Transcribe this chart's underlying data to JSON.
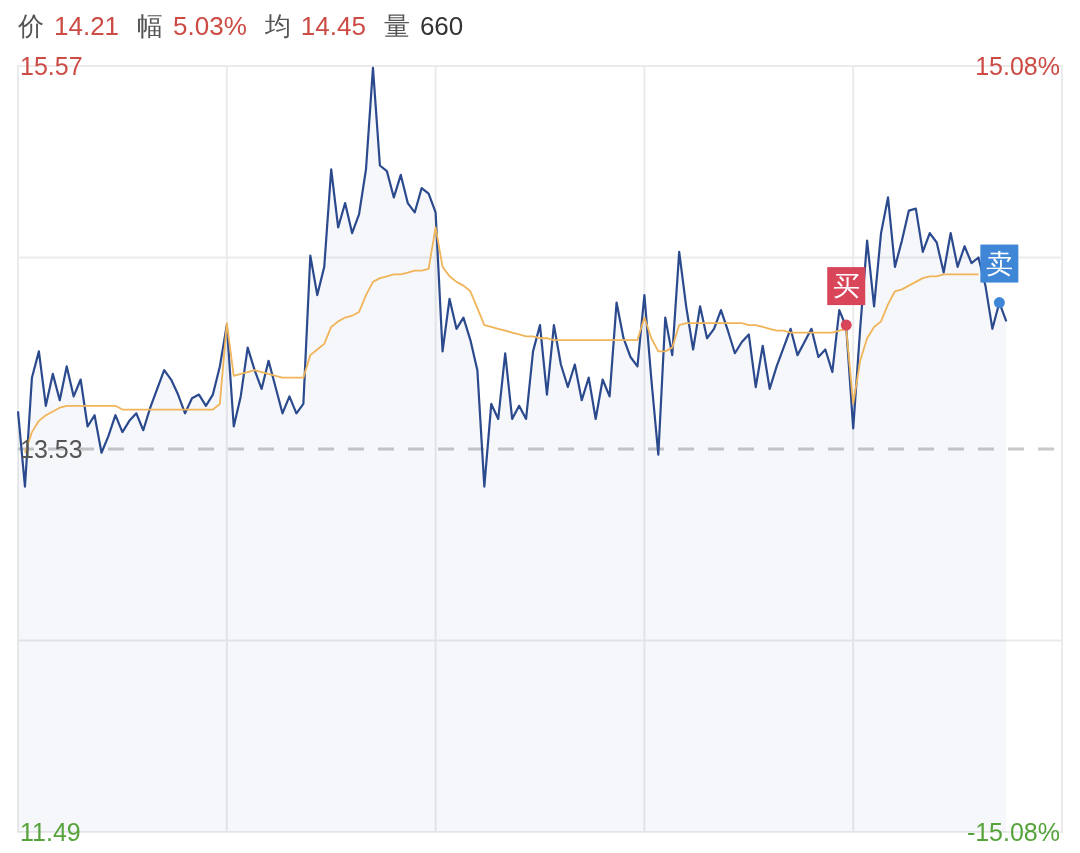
{
  "chart_data": {
    "type": "line",
    "annotations": [
      "价 14.21",
      "幅 5.03%",
      "均 14.45",
      "量 660",
      {
        "text": "买",
        "y": 14.19
      },
      {
        "text": "卖",
        "y": 14.31
      }
    ],
    "categories": [
      null,
      null,
      null,
      null,
      null,
      null,
      null,
      null,
      null,
      null,
      null,
      null,
      null,
      null,
      null,
      null,
      null,
      null,
      null,
      null,
      null,
      null,
      null,
      null,
      null,
      null,
      null,
      null,
      null,
      null,
      null,
      null,
      null,
      null,
      null,
      null,
      null,
      null,
      null,
      null,
      null,
      null,
      null,
      null,
      null,
      null,
      null,
      null,
      null,
      null,
      null,
      null,
      null,
      null,
      null,
      null,
      null,
      null,
      null,
      null,
      null,
      null,
      null,
      null,
      null,
      null,
      null,
      null,
      null,
      null,
      null,
      null,
      null,
      null,
      null,
      null,
      null,
      null,
      null,
      null,
      null,
      null,
      null,
      null,
      null,
      null,
      null,
      null,
      null,
      null,
      null,
      null,
      null,
      null,
      null,
      null,
      null,
      null,
      null,
      null,
      null,
      null,
      null,
      null,
      null,
      null,
      null,
      null,
      null,
      null,
      null,
      null,
      null,
      null,
      null,
      null,
      null,
      null,
      null,
      null,
      null,
      null,
      null,
      null,
      null,
      null,
      null,
      null,
      null,
      null,
      null,
      null,
      null,
      null,
      null,
      null,
      null,
      null,
      null,
      null,
      null,
      null,
      null
    ],
    "ylim": [
      11.49,
      15.57
    ],
    "yticks": [
      11.49,
      {
        "value": 12.51,
        "label": null
      },
      {
        "value": 14.55,
        "label": null
      },
      15.57
    ],
    "y2lim": [
      -15.08,
      15.08
    ],
    "y2ticks": [
      {
        "value": -15.08,
        "label": "-15.08%"
      },
      {
        "value": 15.08,
        "label": "15.08%"
      }
    ],
    "grid": true,
    "ref_lines": [
      {
        "axis": "y",
        "value": 13.53,
        "label": "13.53",
        "color": "#c8c8c8",
        "line_style": "dashed"
      }
    ],
    "series": [
      {
        "type": "area",
        "color": "#2b4a8e",
        "values": [
          13.73,
          13.33,
          13.91,
          14.05,
          13.76,
          13.93,
          13.79,
          13.97,
          13.81,
          13.9,
          13.65,
          13.71,
          13.51,
          13.6,
          13.71,
          13.62,
          13.68,
          13.72,
          13.63,
          13.75,
          13.85,
          13.95,
          13.9,
          13.82,
          13.72,
          13.8,
          13.82,
          13.76,
          13.82,
          13.97,
          14.19,
          13.65,
          13.81,
          14.07,
          13.95,
          13.85,
          14.0,
          13.86,
          13.72,
          13.81,
          13.72,
          13.77,
          14.56,
          14.35,
          14.5,
          15.02,
          14.71,
          14.84,
          14.68,
          14.78,
          15.02,
          15.56,
          15.04,
          15.01,
          14.87,
          14.99,
          14.84,
          14.79,
          14.92,
          14.89,
          14.79,
          14.05,
          14.33,
          14.17,
          14.23,
          14.11,
          13.95,
          13.33,
          13.77,
          13.69,
          14.04,
          13.69,
          13.76,
          13.69,
          14.05,
          14.19,
          13.82,
          14.19,
          13.98,
          13.86,
          13.98,
          13.79,
          13.91,
          13.69,
          13.9,
          13.81,
          14.31,
          14.12,
          14.02,
          13.97,
          14.35,
          13.9,
          13.5,
          14.23,
          14.03,
          14.58,
          14.29,
          14.06,
          14.29,
          14.12,
          14.17,
          14.27,
          14.16,
          14.04,
          14.1,
          14.14,
          13.86,
          14.08,
          13.85,
          13.97,
          14.07,
          14.17,
          14.03,
          14.1,
          14.17,
          14.02,
          14.06,
          13.94,
          14.27,
          14.18,
          13.64,
          14.17,
          14.64,
          14.29,
          14.68,
          14.87,
          14.5,
          14.64,
          14.8,
          14.81,
          14.58,
          14.68,
          14.63,
          14.47,
          14.68,
          14.5,
          14.61,
          14.52,
          14.55,
          14.4,
          14.17,
          14.31,
          14.21
        ]
      },
      {
        "color": "#f0b45a",
        "values": [
          null,
          13.51,
          13.62,
          13.68,
          13.71,
          13.73,
          13.75,
          13.76,
          13.76,
          13.76,
          13.76,
          13.76,
          13.76,
          13.76,
          13.76,
          13.74,
          13.74,
          13.74,
          13.74,
          13.74,
          13.74,
          13.74,
          13.74,
          13.74,
          13.74,
          13.74,
          13.74,
          13.74,
          13.74,
          13.77,
          14.2,
          13.92,
          13.93,
          13.94,
          13.95,
          13.94,
          13.93,
          13.92,
          13.91,
          13.91,
          13.91,
          13.91,
          14.03,
          14.06,
          14.09,
          14.18,
          14.21,
          14.23,
          14.24,
          14.26,
          14.35,
          14.42,
          14.44,
          14.45,
          14.46,
          14.46,
          14.47,
          14.48,
          14.48,
          14.49,
          14.71,
          14.5,
          14.45,
          14.42,
          14.4,
          14.37,
          14.28,
          14.19,
          14.18,
          14.17,
          14.16,
          14.15,
          14.14,
          14.13,
          14.13,
          14.12,
          14.12,
          14.11,
          14.11,
          14.11,
          14.11,
          14.11,
          14.11,
          14.11,
          14.11,
          14.11,
          14.11,
          14.11,
          14.11,
          14.11,
          14.23,
          14.12,
          14.05,
          14.05,
          14.07,
          14.19,
          14.2,
          14.2,
          14.2,
          14.2,
          14.2,
          14.2,
          14.2,
          14.2,
          14.2,
          14.19,
          14.19,
          14.18,
          14.17,
          14.16,
          14.16,
          14.15,
          14.15,
          14.15,
          14.15,
          14.15,
          14.15,
          14.15,
          14.16,
          14.17,
          13.77,
          14.0,
          14.12,
          14.18,
          14.21,
          14.3,
          14.37,
          14.38,
          14.4,
          14.42,
          14.44,
          14.45,
          14.45,
          14.46,
          14.46,
          14.46,
          14.46,
          14.46,
          14.46,
          null,
          null,
          null,
          null
        ]
      },
      {
        "type": "scatter",
        "marker": "circle",
        "color": "#d9465a",
        "values": [
          null,
          null,
          null,
          null,
          null,
          null,
          null,
          null,
          null,
          null,
          null,
          null,
          null,
          null,
          null,
          null,
          null,
          null,
          null,
          null,
          null,
          null,
          null,
          null,
          null,
          null,
          null,
          null,
          null,
          null,
          null,
          null,
          null,
          null,
          null,
          null,
          null,
          null,
          null,
          null,
          null,
          null,
          null,
          null,
          null,
          null,
          null,
          null,
          null,
          null,
          null,
          null,
          null,
          null,
          null,
          null,
          null,
          null,
          null,
          null,
          null,
          null,
          null,
          null,
          null,
          null,
          null,
          null,
          null,
          null,
          null,
          null,
          null,
          null,
          null,
          null,
          null,
          null,
          null,
          null,
          null,
          null,
          null,
          null,
          null,
          null,
          null,
          null,
          null,
          null,
          null,
          null,
          null,
          null,
          null,
          null,
          null,
          null,
          null,
          null,
          null,
          null,
          null,
          null,
          null,
          null,
          null,
          null,
          null,
          null,
          null,
          null,
          null,
          null,
          null,
          null,
          null,
          null,
          null,
          14.19,
          null,
          null,
          null,
          null,
          null,
          null,
          null,
          null,
          null,
          null,
          null,
          null,
          null,
          null,
          null,
          null,
          null,
          null,
          null,
          null,
          null,
          null,
          null
        ]
      },
      {
        "type": "scatter",
        "marker": "circle",
        "color": "#3f86d6",
        "values": [
          null,
          null,
          null,
          null,
          null,
          null,
          null,
          null,
          null,
          null,
          null,
          null,
          null,
          null,
          null,
          null,
          null,
          null,
          null,
          null,
          null,
          null,
          null,
          null,
          null,
          null,
          null,
          null,
          null,
          null,
          null,
          null,
          null,
          null,
          null,
          null,
          null,
          null,
          null,
          null,
          null,
          null,
          null,
          null,
          null,
          null,
          null,
          null,
          null,
          null,
          null,
          null,
          null,
          null,
          null,
          null,
          null,
          null,
          null,
          null,
          null,
          null,
          null,
          null,
          null,
          null,
          null,
          null,
          null,
          null,
          null,
          null,
          null,
          null,
          null,
          null,
          null,
          null,
          null,
          null,
          null,
          null,
          null,
          null,
          null,
          null,
          null,
          null,
          null,
          null,
          null,
          null,
          null,
          null,
          null,
          null,
          null,
          null,
          null,
          null,
          null,
          null,
          null,
          null,
          null,
          null,
          null,
          null,
          null,
          null,
          null,
          null,
          null,
          null,
          null,
          null,
          null,
          null,
          null,
          null,
          null,
          null,
          null,
          null,
          null,
          null,
          null,
          null,
          null,
          null,
          null,
          null,
          null,
          null,
          null,
          null,
          null,
          null,
          null,
          null,
          null,
          14.31,
          null
        ]
      }
    ]
  }
}
